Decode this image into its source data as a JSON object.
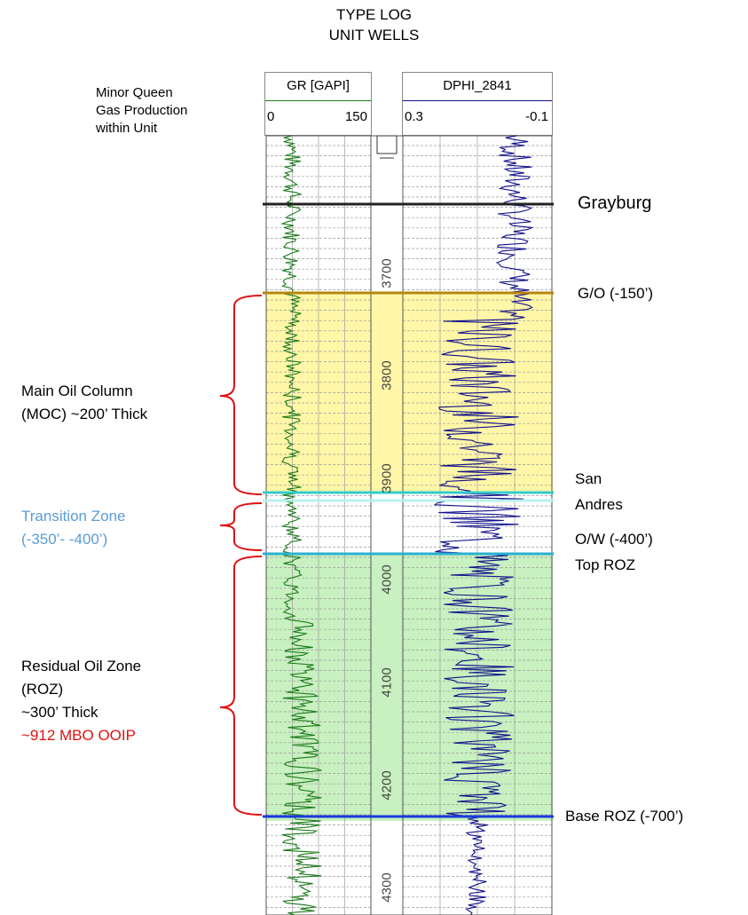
{
  "title": {
    "line1": "TYPE LOG",
    "line2": "UNIT WELLS"
  },
  "notes": {
    "queen_line1": "Minor Queen",
    "queen_line2": "Gas Production",
    "queen_line3": "within Unit"
  },
  "tracks": {
    "gr": {
      "name": "GR [GAPI]",
      "min": "0",
      "max": "150",
      "color": "#1a7a1a"
    },
    "dphi": {
      "name": "DPHI_2841",
      "min": "0.3",
      "max": "-0.1",
      "color": "#10108a"
    }
  },
  "depths": [
    "3700",
    "3800",
    "3900",
    "4000",
    "4100",
    "4200",
    "4300"
  ],
  "markers": {
    "grayburg": "Grayburg",
    "go": "G/O (-150’)",
    "san_andres_1": "San",
    "san_andres_2": "Andres",
    "ow_1": "O/W (-400’)",
    "ow_2": "Top ROZ",
    "base_roz": "Base ROZ (-700’)"
  },
  "zones": {
    "moc_1": "Main Oil Column",
    "moc_2": "(MOC) ~200’ Thick",
    "tz_1": "Transition Zone",
    "tz_2": "(-350’- -400’)",
    "roz_1": "Residual Oil Zone",
    "roz_2": "(ROZ)",
    "roz_3": "~300’ Thick",
    "roz_4": "~912 MBO OOIP"
  },
  "colors": {
    "oil_zone": "#fff6a8",
    "roz_zone": "#c8f0c0",
    "grayburg_line": "#222222",
    "go_line": "#b8860b",
    "san_andres_line": "#33cccc",
    "ow_line": "#2bb0d0",
    "base_roz_line": "#1a3adc",
    "bracket": "#e01010",
    "transition_text": "#5b9bd5",
    "ooip_text": "#e01010"
  }
}
